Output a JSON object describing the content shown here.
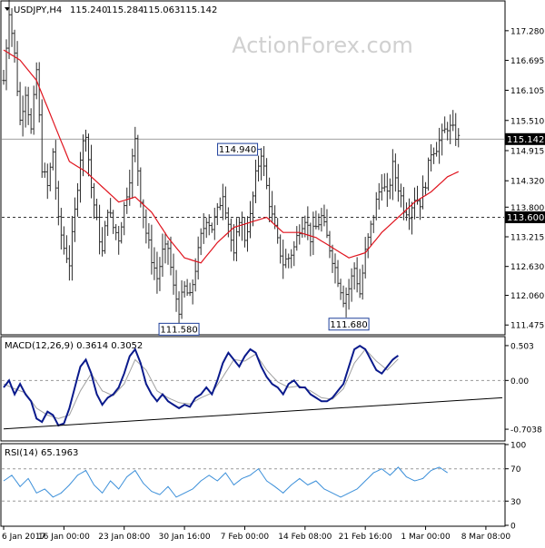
{
  "symbol_header": {
    "symbol": "USDJPY,H4",
    "open": "115.240",
    "high": "115.284",
    "low": "115.063",
    "close": "115.142"
  },
  "watermark": "ActionForex.com",
  "colors": {
    "background": "#ffffff",
    "frame": "#000000",
    "bars": "#2b2b2b",
    "moving_average": "#e0141e",
    "macd_line": "#0a1a8c",
    "signal_line": "#a0a0a0",
    "rsi_line": "#3b8fd9",
    "trendline": "#000000",
    "watermark": "#d0d0d0",
    "callout_border": "#1e3f9a",
    "current_price_label_bg": "#000000",
    "current_price_label_text": "#ffffff"
  },
  "price_panel": {
    "ylim": [
      111.3,
      117.85
    ],
    "tick_labels": [
      "117.280",
      "116.695",
      "116.105",
      "115.510",
      "114.915",
      "114.320",
      "113.800",
      "113.215",
      "112.630",
      "112.060",
      "111.475"
    ],
    "tick_values": [
      117.28,
      116.695,
      116.105,
      115.51,
      114.915,
      114.32,
      113.8,
      113.215,
      112.63,
      112.06,
      111.475
    ],
    "current_price": 115.142,
    "current_price_label": "115.142",
    "support_level": 113.6,
    "support_label": "113.600",
    "callouts": [
      {
        "label": "114.940",
        "value": 114.94,
        "bar_index": 94
      },
      {
        "label": "111.580",
        "value": 111.58,
        "bar_index": 64
      },
      {
        "label": "111.680",
        "value": 111.68,
        "bar_index": 126
      }
    ]
  },
  "macd_panel": {
    "title": "MACD(12,26,9) 0.3614 0.3052",
    "ylim": [
      -0.86,
      0.62
    ],
    "tick_labels": [
      "0.503",
      "0.00",
      "-0.7038"
    ],
    "tick_values": [
      0.503,
      0.0,
      -0.7038
    ],
    "zero_line": 0.0
  },
  "rsi_panel": {
    "title": "RSI(14) 65.1963",
    "ylim": [
      0,
      100
    ],
    "tick_labels": [
      "100",
      "70",
      "30",
      "0"
    ],
    "tick_values": [
      100,
      70,
      30,
      0
    ],
    "levels": [
      70,
      30
    ]
  },
  "time_axis": {
    "labels": [
      "6 Jan 2017",
      "16 Jan 00:00",
      "23 Jan 08:00",
      "30 Jan 16:00",
      "7 Feb 00:00",
      "14 Feb 08:00",
      "21 Feb 16:00",
      "1 Mar 00:00",
      "8 Mar 08:00"
    ],
    "bar_indices": [
      0,
      22,
      44,
      66,
      88,
      110,
      132,
      154,
      176
    ]
  },
  "chart_data": [
    {
      "type": "line",
      "title": "USDJPY,H4 115.240 115.284 115.063 115.142",
      "bar_count": 182,
      "series": [],
      "anchors": [
        [
          0,
          116.3
        ],
        [
          2,
          117.7
        ],
        [
          4,
          116.8
        ],
        [
          6,
          115.5
        ],
        [
          8,
          116.1
        ],
        [
          10,
          115.3
        ],
        [
          12,
          116.5
        ],
        [
          14,
          114.6
        ],
        [
          16,
          114.2
        ],
        [
          18,
          114.9
        ],
        [
          20,
          113.5
        ],
        [
          22,
          113.0
        ],
        [
          24,
          112.7
        ],
        [
          26,
          113.7
        ],
        [
          28,
          114.8
        ],
        [
          30,
          115.3
        ],
        [
          32,
          114.2
        ],
        [
          34,
          113.5
        ],
        [
          36,
          112.9
        ],
        [
          38,
          113.8
        ],
        [
          40,
          113.4
        ],
        [
          42,
          113.2
        ],
        [
          44,
          113.8
        ],
        [
          46,
          114.4
        ],
        [
          48,
          115.1
        ],
        [
          50,
          114.0
        ],
        [
          52,
          113.3
        ],
        [
          54,
          112.8
        ],
        [
          56,
          112.4
        ],
        [
          58,
          112.9
        ],
        [
          60,
          113.0
        ],
        [
          62,
          112.2
        ],
        [
          64,
          111.8
        ],
        [
          66,
          112.2
        ],
        [
          68,
          112.0
        ],
        [
          70,
          112.6
        ],
        [
          72,
          113.2
        ],
        [
          74,
          113.6
        ],
        [
          76,
          113.4
        ],
        [
          78,
          113.7
        ],
        [
          80,
          114.1
        ],
        [
          82,
          113.5
        ],
        [
          84,
          112.8
        ],
        [
          86,
          113.6
        ],
        [
          88,
          113.2
        ],
        [
          90,
          113.6
        ],
        [
          92,
          114.4
        ],
        [
          94,
          114.9
        ],
        [
          96,
          114.2
        ],
        [
          98,
          113.6
        ],
        [
          100,
          113.1
        ],
        [
          102,
          112.7
        ],
        [
          104,
          112.8
        ],
        [
          106,
          113.0
        ],
        [
          108,
          113.4
        ],
        [
          110,
          113.6
        ],
        [
          112,
          113.2
        ],
        [
          114,
          113.4
        ],
        [
          116,
          113.6
        ],
        [
          118,
          113.2
        ],
        [
          120,
          112.8
        ],
        [
          122,
          112.4
        ],
        [
          124,
          112.0
        ],
        [
          126,
          112.2
        ],
        [
          128,
          112.6
        ],
        [
          130,
          112.1
        ],
        [
          132,
          112.9
        ],
        [
          134,
          113.4
        ],
        [
          136,
          113.9
        ],
        [
          138,
          114.3
        ],
        [
          140,
          114.0
        ],
        [
          142,
          114.6
        ],
        [
          144,
          114.2
        ],
        [
          146,
          113.8
        ],
        [
          148,
          113.7
        ],
        [
          150,
          114.0
        ],
        [
          152,
          113.9
        ],
        [
          154,
          114.3
        ],
        [
          156,
          114.9
        ],
        [
          158,
          115.0
        ],
        [
          160,
          115.2
        ],
        [
          162,
          115.4
        ],
        [
          164,
          115.3
        ],
        [
          166,
          115.14
        ]
      ],
      "moving_average_anchors": [
        [
          0,
          116.9
        ],
        [
          6,
          116.7
        ],
        [
          12,
          116.3
        ],
        [
          18,
          115.5
        ],
        [
          24,
          114.7
        ],
        [
          30,
          114.5
        ],
        [
          36,
          114.2
        ],
        [
          42,
          113.9
        ],
        [
          48,
          114.0
        ],
        [
          54,
          113.7
        ],
        [
          60,
          113.2
        ],
        [
          66,
          112.8
        ],
        [
          72,
          112.7
        ],
        [
          78,
          113.1
        ],
        [
          84,
          113.4
        ],
        [
          90,
          113.5
        ],
        [
          96,
          113.6
        ],
        [
          102,
          113.3
        ],
        [
          108,
          113.3
        ],
        [
          114,
          113.2
        ],
        [
          120,
          113.0
        ],
        [
          126,
          112.8
        ],
        [
          132,
          112.9
        ],
        [
          138,
          113.3
        ],
        [
          144,
          113.6
        ],
        [
          150,
          113.9
        ],
        [
          156,
          114.1
        ],
        [
          162,
          114.4
        ],
        [
          166,
          114.5
        ]
      ],
      "ylim": [
        111.3,
        117.85
      ]
    },
    {
      "type": "line",
      "title": "MACD(12,26,9) 0.3614 0.3052",
      "series": [],
      "macd_anchors": [
        [
          0,
          -0.1
        ],
        [
          2,
          0.0
        ],
        [
          4,
          -0.2
        ],
        [
          6,
          -0.05
        ],
        [
          8,
          -0.2
        ],
        [
          10,
          -0.3
        ],
        [
          12,
          -0.55
        ],
        [
          14,
          -0.6
        ],
        [
          16,
          -0.45
        ],
        [
          18,
          -0.5
        ],
        [
          20,
          -0.65
        ],
        [
          22,
          -0.62
        ],
        [
          24,
          -0.4
        ],
        [
          26,
          -0.1
        ],
        [
          28,
          0.2
        ],
        [
          30,
          0.3
        ],
        [
          32,
          0.1
        ],
        [
          34,
          -0.2
        ],
        [
          36,
          -0.35
        ],
        [
          38,
          -0.25
        ],
        [
          40,
          -0.2
        ],
        [
          42,
          -0.1
        ],
        [
          44,
          0.1
        ],
        [
          46,
          0.35
        ],
        [
          48,
          0.45
        ],
        [
          50,
          0.25
        ],
        [
          52,
          -0.05
        ],
        [
          54,
          -0.2
        ],
        [
          56,
          -0.3
        ],
        [
          58,
          -0.2
        ],
        [
          60,
          -0.3
        ],
        [
          62,
          -0.35
        ],
        [
          64,
          -0.4
        ],
        [
          66,
          -0.35
        ],
        [
          68,
          -0.38
        ],
        [
          70,
          -0.25
        ],
        [
          72,
          -0.2
        ],
        [
          74,
          -0.1
        ],
        [
          76,
          -0.2
        ],
        [
          78,
          0.0
        ],
        [
          80,
          0.25
        ],
        [
          82,
          0.4
        ],
        [
          84,
          0.3
        ],
        [
          86,
          0.2
        ],
        [
          88,
          0.35
        ],
        [
          90,
          0.45
        ],
        [
          92,
          0.4
        ],
        [
          94,
          0.2
        ],
        [
          96,
          0.05
        ],
        [
          98,
          -0.05
        ],
        [
          100,
          -0.1
        ],
        [
          102,
          -0.2
        ],
        [
          104,
          -0.05
        ],
        [
          106,
          0.0
        ],
        [
          108,
          -0.1
        ],
        [
          110,
          -0.1
        ],
        [
          112,
          -0.2
        ],
        [
          114,
          -0.25
        ],
        [
          116,
          -0.3
        ],
        [
          118,
          -0.3
        ],
        [
          120,
          -0.25
        ],
        [
          122,
          -0.15
        ],
        [
          124,
          -0.05
        ],
        [
          126,
          0.2
        ],
        [
          128,
          0.45
        ],
        [
          130,
          0.5
        ],
        [
          132,
          0.45
        ],
        [
          134,
          0.3
        ],
        [
          136,
          0.15
        ],
        [
          138,
          0.1
        ],
        [
          140,
          0.2
        ],
        [
          142,
          0.3
        ],
        [
          144,
          0.36
        ]
      ],
      "signal_anchors": [
        [
          0,
          -0.05
        ],
        [
          4,
          -0.12
        ],
        [
          8,
          -0.18
        ],
        [
          12,
          -0.4
        ],
        [
          16,
          -0.5
        ],
        [
          20,
          -0.55
        ],
        [
          24,
          -0.5
        ],
        [
          28,
          -0.15
        ],
        [
          32,
          0.1
        ],
        [
          36,
          -0.15
        ],
        [
          40,
          -0.22
        ],
        [
          44,
          -0.05
        ],
        [
          48,
          0.3
        ],
        [
          52,
          0.15
        ],
        [
          56,
          -0.15
        ],
        [
          60,
          -0.25
        ],
        [
          64,
          -0.32
        ],
        [
          68,
          -0.34
        ],
        [
          72,
          -0.25
        ],
        [
          76,
          -0.18
        ],
        [
          80,
          0.05
        ],
        [
          84,
          0.3
        ],
        [
          88,
          0.28
        ],
        [
          92,
          0.38
        ],
        [
          96,
          0.15
        ],
        [
          100,
          -0.02
        ],
        [
          104,
          -0.1
        ],
        [
          108,
          -0.08
        ],
        [
          112,
          -0.15
        ],
        [
          116,
          -0.25
        ],
        [
          120,
          -0.27
        ],
        [
          124,
          -0.12
        ],
        [
          128,
          0.25
        ],
        [
          132,
          0.45
        ],
        [
          136,
          0.28
        ],
        [
          140,
          0.15
        ],
        [
          144,
          0.31
        ]
      ],
      "trendline": [
        [
          0,
          -0.7
        ],
        [
          182,
          -0.25
        ]
      ],
      "ylim": [
        -0.86,
        0.62
      ]
    },
    {
      "type": "line",
      "title": "RSI(14) 65.1963",
      "series": [],
      "anchors": [
        [
          0,
          55
        ],
        [
          3,
          62
        ],
        [
          6,
          48
        ],
        [
          9,
          58
        ],
        [
          12,
          40
        ],
        [
          15,
          45
        ],
        [
          18,
          35
        ],
        [
          21,
          40
        ],
        [
          24,
          50
        ],
        [
          27,
          62
        ],
        [
          30,
          68
        ],
        [
          33,
          50
        ],
        [
          36,
          40
        ],
        [
          39,
          55
        ],
        [
          42,
          45
        ],
        [
          45,
          60
        ],
        [
          48,
          68
        ],
        [
          51,
          52
        ],
        [
          54,
          42
        ],
        [
          57,
          38
        ],
        [
          60,
          48
        ],
        [
          63,
          35
        ],
        [
          66,
          40
        ],
        [
          69,
          45
        ],
        [
          72,
          55
        ],
        [
          75,
          62
        ],
        [
          78,
          55
        ],
        [
          81,
          65
        ],
        [
          84,
          50
        ],
        [
          87,
          58
        ],
        [
          90,
          62
        ],
        [
          93,
          70
        ],
        [
          96,
          55
        ],
        [
          99,
          48
        ],
        [
          102,
          40
        ],
        [
          105,
          50
        ],
        [
          108,
          58
        ],
        [
          111,
          50
        ],
        [
          114,
          55
        ],
        [
          117,
          45
        ],
        [
          120,
          40
        ],
        [
          123,
          35
        ],
        [
          126,
          40
        ],
        [
          129,
          45
        ],
        [
          132,
          55
        ],
        [
          135,
          65
        ],
        [
          138,
          70
        ],
        [
          141,
          62
        ],
        [
          144,
          72
        ],
        [
          147,
          60
        ],
        [
          150,
          55
        ],
        [
          153,
          58
        ],
        [
          156,
          68
        ],
        [
          159,
          72
        ],
        [
          162,
          65
        ]
      ],
      "ylim": [
        0,
        100
      ]
    }
  ]
}
